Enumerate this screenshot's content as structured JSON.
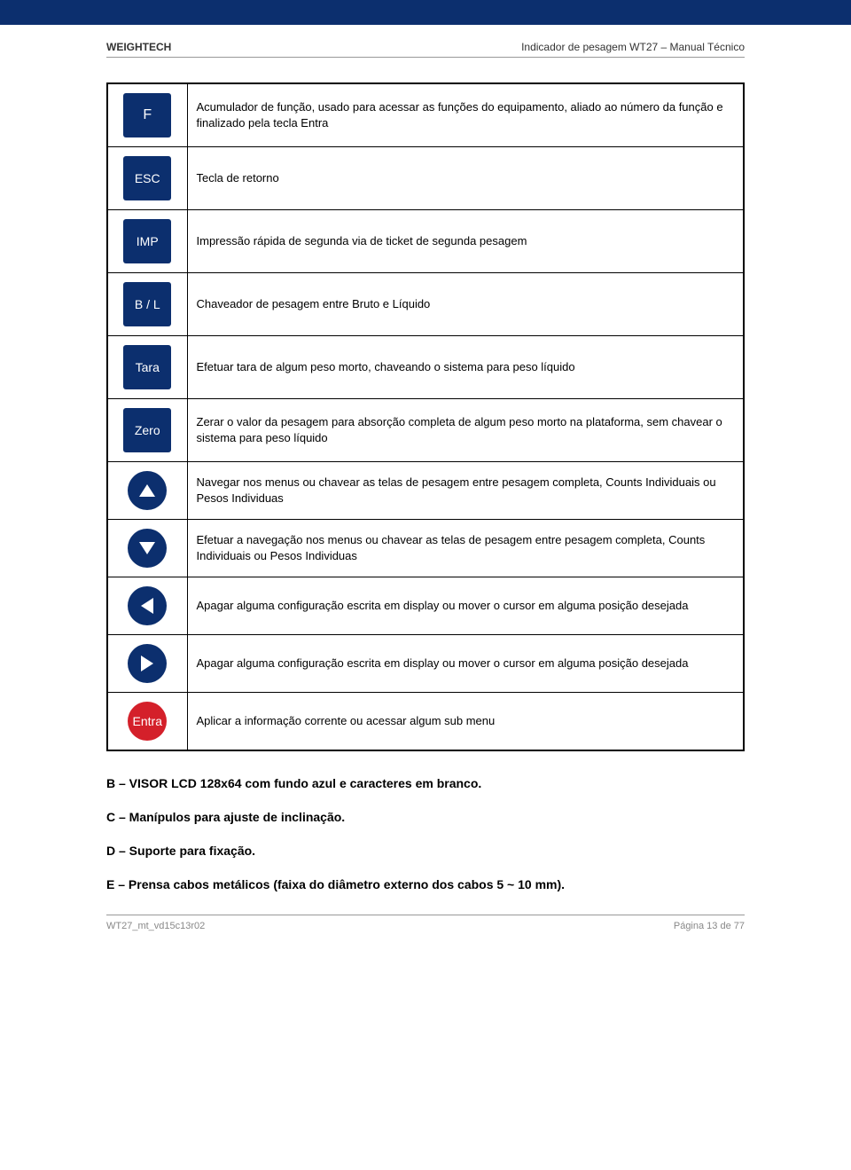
{
  "colors": {
    "brand_dark_blue": "#0c2f6e",
    "brand_red": "#d4202a",
    "border_black": "#000000",
    "text_gray": "#888888",
    "rule_gray": "#999999"
  },
  "header": {
    "left": "WEIGHTECH",
    "right": "Indicador de pesagem WT27 – Manual Técnico"
  },
  "keys": [
    {
      "type": "square",
      "label": "F",
      "desc": "Acumulador de função, usado para acessar as funções do equipamento, aliado ao número da função e finalizado pela tecla Entra"
    },
    {
      "type": "square",
      "label": "ESC",
      "desc": "Tecla de retorno"
    },
    {
      "type": "square",
      "label": "IMP",
      "desc": "Impressão rápida de segunda via de ticket de segunda pesagem"
    },
    {
      "type": "square",
      "label": "B / L",
      "desc": "Chaveador de pesagem entre Bruto e Líquido"
    },
    {
      "type": "square",
      "label": "Tara",
      "desc": "Efetuar tara de algum peso morto, chaveando o sistema para peso líquido"
    },
    {
      "type": "square",
      "label": "Zero",
      "desc": "Zerar o valor da pesagem para absorção completa de algum peso morto na plataforma, sem chavear o sistema para peso líquido"
    },
    {
      "type": "circle-arrow",
      "arrow": "up",
      "desc": "Navegar nos menus ou chavear as telas de pesagem entre pesagem completa, Counts Individuais ou Pesos Individuas"
    },
    {
      "type": "circle-arrow",
      "arrow": "down",
      "desc": "Efetuar a navegação nos menus ou chavear as telas de pesagem entre pesagem completa, Counts Individuais ou Pesos Individuas"
    },
    {
      "type": "circle-arrow",
      "arrow": "left",
      "desc": "Apagar alguma configuração escrita em display ou mover o cursor em alguma posição desejada"
    },
    {
      "type": "circle-arrow",
      "arrow": "right",
      "desc": "Apagar alguma configuração escrita em display ou mover o cursor em alguma posição desejada"
    },
    {
      "type": "circle-red",
      "label": "Entra",
      "desc": "Aplicar a informação corrente ou acessar algum sub menu"
    }
  ],
  "sections": [
    "B – VISOR LCD 128x64 com fundo azul e caracteres em branco.",
    "C – Manípulos para ajuste de inclinação.",
    "D – Suporte para fixação.",
    "E – Prensa cabos metálicos (faixa do diâmetro externo dos cabos 5 ~ 10 mm)."
  ],
  "footer": {
    "left": "WT27_mt_vd15c13r02",
    "right": "Página 13 de 77"
  }
}
